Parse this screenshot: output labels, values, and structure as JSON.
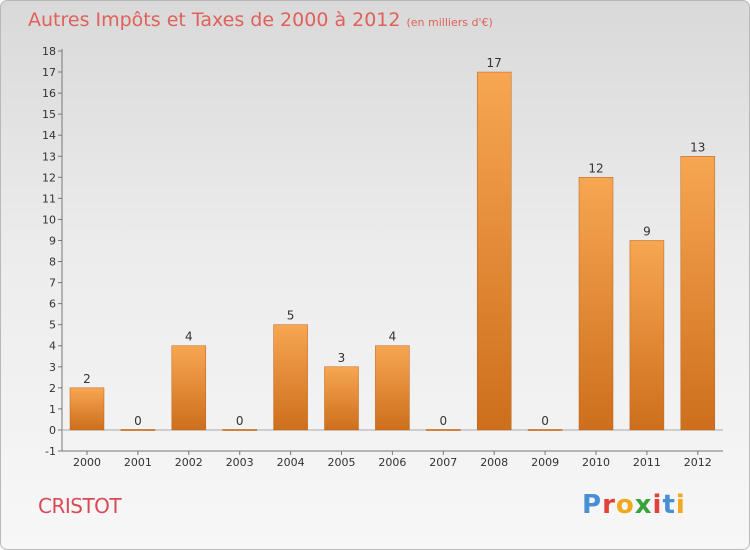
{
  "header": {
    "title": "Autres Impôts et Taxes de 2000 à 2012",
    "subtitle": "(en milliers d'€)"
  },
  "footer": {
    "commune": "CRISTOT",
    "logo": "Proxiti"
  },
  "colors": {
    "title": "#e0605a",
    "bar_top": "#f7a652",
    "bar_bottom": "#cd6f1c",
    "logo_letters": [
      "#4a8fd4",
      "#e3403a",
      "#f2a81d",
      "#3aa23a",
      "#e3403a",
      "#4a8fd4",
      "#f2a81d"
    ]
  },
  "chart_data": {
    "type": "bar",
    "categories": [
      "2000",
      "2001",
      "2002",
      "2003",
      "2004",
      "2005",
      "2006",
      "2007",
      "2008",
      "2009",
      "2010",
      "2011",
      "2012"
    ],
    "values": [
      2,
      0,
      4,
      0,
      5,
      3,
      4,
      0,
      17,
      0,
      12,
      9,
      13
    ],
    "data_labels": [
      "2",
      "0",
      "4",
      "0",
      "5",
      "3",
      "4",
      "0",
      "17",
      "0",
      "12",
      "9",
      "13"
    ],
    "ylim": [
      -1,
      18
    ],
    "yticks": [
      -1,
      0,
      1,
      2,
      3,
      4,
      5,
      6,
      7,
      8,
      9,
      10,
      11,
      12,
      13,
      14,
      15,
      16,
      17,
      18
    ],
    "grid": false,
    "xlabel": "",
    "ylabel": ""
  }
}
